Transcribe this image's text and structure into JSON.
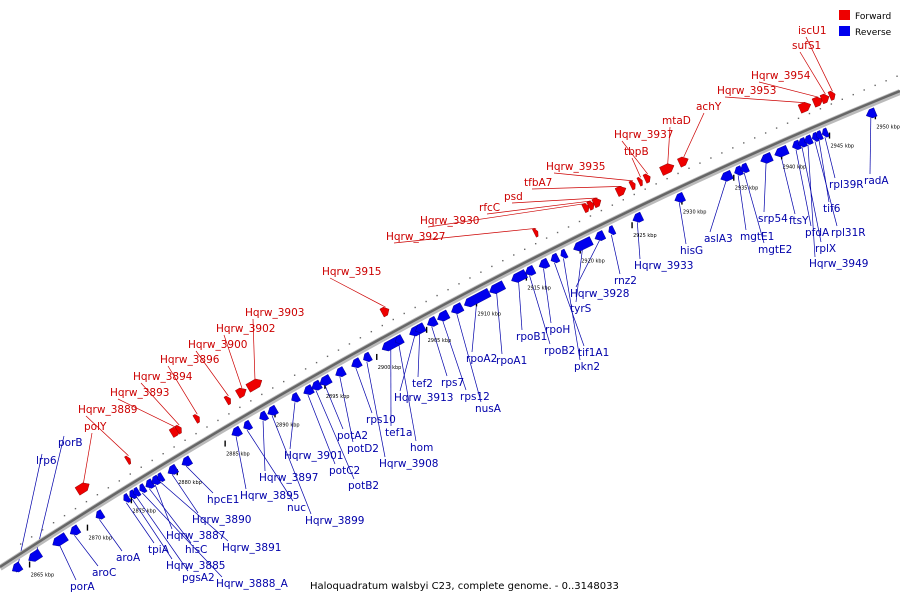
{
  "caption": "Haloquadratum walsbyi C23, complete genome. - 0..3148033",
  "legend": [
    {
      "label": "Forward",
      "color": "#ee0000"
    },
    {
      "label": "Reverse",
      "color": "#0000ee"
    }
  ],
  "colors": {
    "forward": "#ee0000",
    "reverse": "#0000ee",
    "backbone": "#888888"
  },
  "ticks": [
    "2865 kbp",
    "2870 kbp",
    "2875 kbp",
    "2880 kbp",
    "2885 kbp",
    "2890 kbp",
    "2895 kbp",
    "2900 kbp",
    "2905 kbp",
    "2910 kbp",
    "2915 kbp",
    "2920 kbp",
    "2925 kbp",
    "2930 kbp",
    "2935 kbp",
    "2940 kbp",
    "2945 kbp",
    "2950 kbp"
  ],
  "forward_genes": [
    "polY",
    "Hqrw_3889",
    "Hqrw_3893",
    "Hqrw_3894",
    "Hqrw_3896",
    "Hqrw_3900",
    "Hqrw_3902",
    "Hqrw_3903",
    "Hqrw_3915",
    "Hqrw_3927",
    "Hqrw_3930",
    "rfcC",
    "psd",
    "tfbA7",
    "Hqrw_3935",
    "tbpB",
    "Hqrw_3937",
    "mtaD",
    "achY",
    "Hqrw_3953",
    "Hqrw_3954",
    "sufS1",
    "iscU1"
  ],
  "reverse_genes": [
    "lrp6",
    "porB",
    "porA",
    "aroC",
    "aroA",
    "tpiA",
    "Hqrw_3885",
    "pgsA2",
    "Hqrw_3888_A",
    "hisC",
    "Hqrw_3887",
    "Hqrw_3891",
    "Hqrw_3890",
    "hpcE1",
    "Hqrw_3895",
    "nuc",
    "Hqrw_3897",
    "Hqrw_3899",
    "Hqrw_3901",
    "potC2",
    "potB2",
    "potA2",
    "potD2",
    "rps10",
    "Hqrw_3908",
    "tef1a",
    "hom",
    "Hqrw_3913",
    "tef2",
    "rps7",
    "rps12",
    "nusA",
    "rpoA2",
    "rpoA1",
    "rpoB1",
    "rpoB2",
    "rpoH",
    "tif1A1",
    "pkn2",
    "tyrS",
    "Hqrw_3928",
    "rnz2",
    "Hqrw_3933",
    "hisG",
    "aslA3",
    "mgtE1",
    "mgtE2",
    "srp54",
    "ftsY",
    "pfdA",
    "rplX",
    "Hqrw_3949",
    "rpl31R",
    "tif6",
    "rpl39R",
    "radA"
  ]
}
